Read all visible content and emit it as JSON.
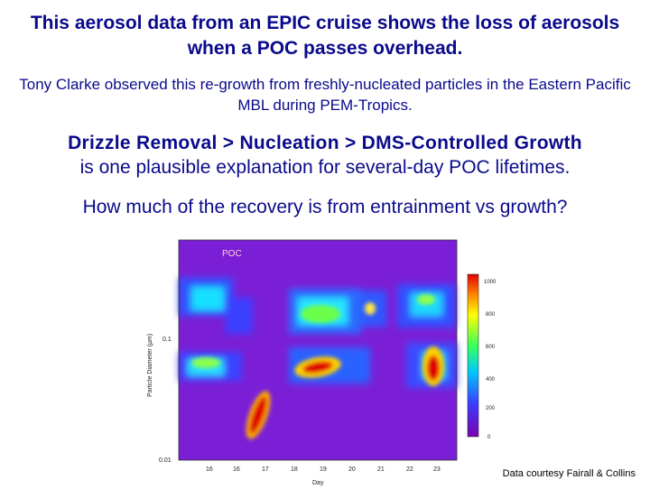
{
  "slide": {
    "title": "This aerosol data from an EPIC cruise shows the loss of aerosols when a POC passes overhead.",
    "subtitle": "Tony Clarke observed this re-growth from freshly-nucleated particles in the Eastern Pacific MBL during PEM-Tropics.",
    "mechanism_bold": "Drizzle Removal > Nucleation > DMS-Controlled Growth",
    "mechanism_rest": "is one plausible explanation for several-day POC lifetimes.",
    "question": "How much of the recovery is from entrainment vs growth?",
    "credit": "Data courtesy Fairall & Collins"
  },
  "figure": {
    "annotation": "POC",
    "xlabel": "Day",
    "ylabel": "Particle Diameter (µm)",
    "xticks": [
      "16",
      "16",
      "17",
      "18",
      "19",
      "20",
      "21",
      "22",
      "23"
    ],
    "yticks": [
      "0.1",
      "0.01"
    ],
    "colorbar_ticks": [
      "1000",
      "800",
      "600",
      "400",
      "200",
      "0"
    ]
  }
}
